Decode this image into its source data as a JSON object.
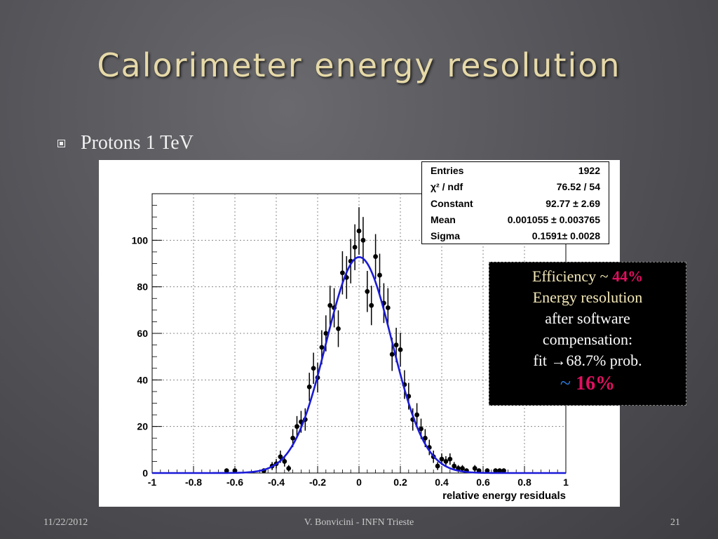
{
  "slide": {
    "title": "Calorimeter energy resolution",
    "bullet": "Protons 1 TeV",
    "footer_date": "11/22/2012",
    "footer_author": "V. Bonvicini - INFN Trieste",
    "page_number": "21"
  },
  "stats_box": {
    "entries_label": "Entries",
    "entries_value": "1922",
    "chi2_label": "χ² / ndf",
    "chi2_value": "76.52 / 54",
    "constant_label": "Constant",
    "constant_value": "92.77 ± 2.69",
    "mean_label": "Mean",
    "mean_value": "0.001055 ± 0.003765",
    "sigma_label": "Sigma",
    "sigma_value": "0.1591± 0.0028"
  },
  "callout": {
    "line1_prefix": "Efficiency  ~ ",
    "line1_value": "44%",
    "line2": "Energy resolution",
    "line3": "after software",
    "line4": "compensation:",
    "line5_prefix": "fit ",
    "line5_arrow": "→",
    "line5_suffix": "68.7% prob.",
    "line6_prefix": "~ ",
    "line6_value": "16%"
  },
  "colors": {
    "fit_line": "#1a1ad8",
    "highlight_red": "#e01060",
    "callout_text": "#f5e9b8"
  },
  "chart_data": {
    "type": "scatter",
    "title": "",
    "xlabel": "relative energy residuals",
    "ylabel": "",
    "xlim": [
      -1,
      1
    ],
    "ylim": [
      0,
      120
    ],
    "x_ticks": [
      "-1",
      "-0.8",
      "-0.6",
      "-0.4",
      "-0.2",
      "0",
      "0.2",
      "0.4",
      "0.6",
      "0.8",
      "1"
    ],
    "x_tick_values": [
      -1,
      -0.8,
      -0.6,
      -0.4,
      -0.2,
      0,
      0.2,
      0.4,
      0.6,
      0.8,
      1
    ],
    "y_ticks": [
      "0",
      "20",
      "40",
      "60",
      "80",
      "100"
    ],
    "y_tick_values": [
      0,
      20,
      40,
      60,
      80,
      100
    ],
    "grid": true,
    "series": [
      {
        "kind": "histogram-points",
        "points": [
          [
            -0.64,
            1
          ],
          [
            -0.6,
            1
          ],
          [
            -0.46,
            1
          ],
          [
            -0.42,
            3
          ],
          [
            -0.4,
            4
          ],
          [
            -0.38,
            7
          ],
          [
            -0.36,
            5
          ],
          [
            -0.34,
            2
          ],
          [
            -0.32,
            15
          ],
          [
            -0.3,
            20
          ],
          [
            -0.28,
            22
          ],
          [
            -0.26,
            23
          ],
          [
            -0.24,
            37
          ],
          [
            -0.22,
            45
          ],
          [
            -0.2,
            41
          ],
          [
            -0.18,
            54
          ],
          [
            -0.16,
            60
          ],
          [
            -0.14,
            72
          ],
          [
            -0.12,
            71
          ],
          [
            -0.1,
            62
          ],
          [
            -0.08,
            86
          ],
          [
            -0.06,
            84
          ],
          [
            -0.04,
            91
          ],
          [
            -0.02,
            97
          ],
          [
            0,
            104
          ],
          [
            0.02,
            100
          ],
          [
            0.04,
            78
          ],
          [
            0.06,
            72
          ],
          [
            0.08,
            93
          ],
          [
            0.1,
            85
          ],
          [
            0.12,
            73
          ],
          [
            0.14,
            71
          ],
          [
            0.16,
            51
          ],
          [
            0.18,
            55
          ],
          [
            0.2,
            53
          ],
          [
            0.22,
            38
          ],
          [
            0.24,
            33
          ],
          [
            0.26,
            23
          ],
          [
            0.28,
            25
          ],
          [
            0.3,
            19
          ],
          [
            0.32,
            15
          ],
          [
            0.34,
            11
          ],
          [
            0.36,
            7
          ],
          [
            0.38,
            3
          ],
          [
            0.4,
            6
          ],
          [
            0.42,
            5
          ],
          [
            0.44,
            6
          ],
          [
            0.46,
            3
          ],
          [
            0.48,
            2
          ],
          [
            0.5,
            2
          ],
          [
            0.52,
            1
          ],
          [
            0.56,
            2
          ],
          [
            0.58,
            1
          ],
          [
            0.62,
            1
          ],
          [
            0.66,
            1
          ],
          [
            0.68,
            1
          ],
          [
            0.7,
            1
          ]
        ]
      },
      {
        "kind": "gaussian-fit",
        "constant": 92.77,
        "mean": 0.001055,
        "sigma": 0.1591
      }
    ]
  }
}
